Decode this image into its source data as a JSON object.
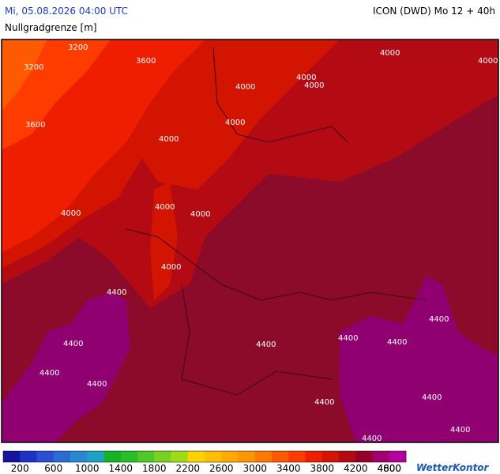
{
  "header": {
    "title": "Mi, 05.08.2026 04:00 UTC",
    "model": "ICON (DWD) Mo 12 + 40h",
    "subtitle": "Nullgradgrenze [m]"
  },
  "map": {
    "contour_labels": [
      3200,
      3200,
      3600,
      3600,
      4000,
      4000,
      4000,
      4000,
      4000,
      4000,
      4000,
      4000,
      4000,
      4000,
      4000,
      4400,
      4400,
      4400,
      4400,
      4400,
      4400,
      4400,
      4400,
      4400,
      4400,
      4400,
      4400
    ]
  },
  "legend": {
    "colors": [
      "#1414a0",
      "#1e32c8",
      "#2850d0",
      "#2a6cd0",
      "#2a88d0",
      "#1ea0c8",
      "#14b428",
      "#28be28",
      "#50c828",
      "#78d21e",
      "#a0dc14",
      "#ffd200",
      "#ffbe00",
      "#ffaa00",
      "#ff9600",
      "#ff7800",
      "#ff5a00",
      "#ff3c00",
      "#f01e00",
      "#d21400",
      "#b40a14",
      "#960028",
      "#a0006e",
      "#b400a0"
    ],
    "labels": [
      200,
      600,
      1000,
      1400,
      1800,
      2200,
      2600,
      3000,
      3400,
      3800,
      4200,
      4600,
      4800
    ]
  },
  "logo": "WetterKontor"
}
